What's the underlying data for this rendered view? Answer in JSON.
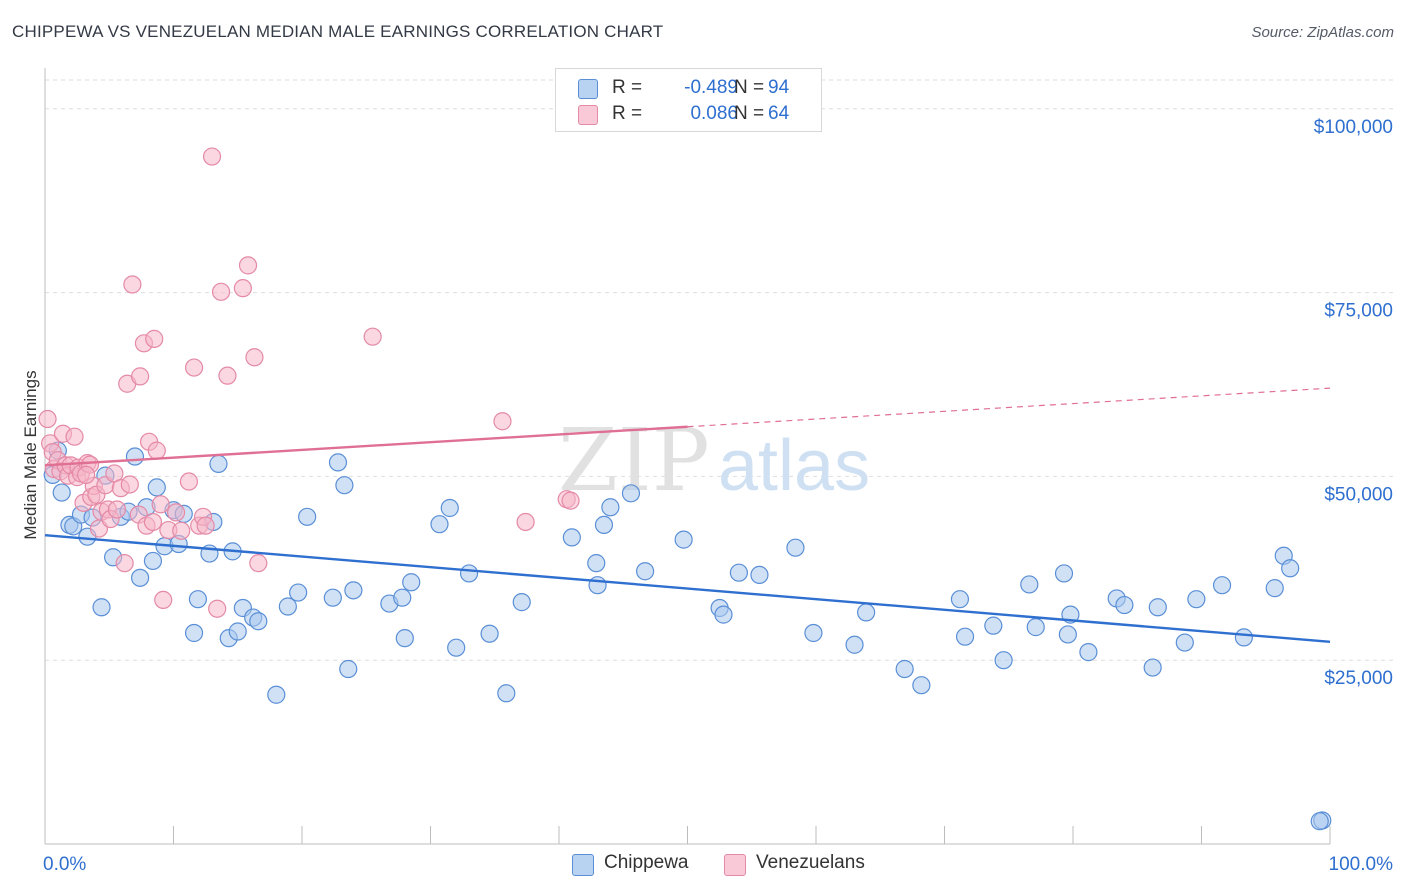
{
  "header": {
    "title": "CHIPPEWA VS VENEZUELAN MEDIAN MALE EARNINGS CORRELATION CHART",
    "source": "Source: ZipAtlas.com"
  },
  "watermark": {
    "zip": "ZIP",
    "atlas": "atlas"
  },
  "legend_top": {
    "rows": [
      {
        "r_label": "R =",
        "r_value": "-0.489",
        "n_label": "N =",
        "n_value": "94"
      },
      {
        "r_label": "R =",
        "r_value": "0.086",
        "n_label": "N =",
        "n_value": "64"
      }
    ]
  },
  "legend_bottom": {
    "items": [
      {
        "label": "Chippewa"
      },
      {
        "label": "Venezuelans"
      }
    ]
  },
  "colors": {
    "blue_fill": "#a9c8ef",
    "blue_stroke": "#5a8fd6",
    "blue_line": "#2e6fcf",
    "pink_fill": "#f6b6c8",
    "pink_stroke": "#e48aa6",
    "pink_line": "#e06f94",
    "grid": "#dedede",
    "axis_label": "#2e6fcf"
  },
  "chart_data": {
    "type": "scatter",
    "title": "CHIPPEWA VS VENEZUELAN MEDIAN MALE EARNINGS CORRELATION CHART",
    "xlabel": "",
    "ylabel": "Median Male Earnings",
    "xlim": [
      0,
      100
    ],
    "ylim": [
      0,
      105000
    ],
    "x_tick_labels": [
      "0.0%",
      "100.0%"
    ],
    "y_ticks": [
      {
        "value": 25000,
        "label": "$25,000"
      },
      {
        "value": 50000,
        "label": "$50,000"
      },
      {
        "value": 75000,
        "label": "$75,000"
      },
      {
        "value": 100000,
        "label": "$100,000"
      }
    ],
    "grid": true,
    "legend": "bottom-center",
    "series": [
      {
        "name": "Chippewa",
        "r": -0.489,
        "n": 94,
        "trend": {
          "x0": 0,
          "y0": 42000,
          "x1": 100,
          "y1": 27500,
          "dashed_from": null
        },
        "points": [
          [
            0.6,
            50200
          ],
          [
            1.0,
            53500
          ],
          [
            1.3,
            47800
          ],
          [
            1.9,
            43400
          ],
          [
            2.2,
            43200
          ],
          [
            2.8,
            44800
          ],
          [
            3.3,
            41800
          ],
          [
            3.7,
            44400
          ],
          [
            4.4,
            32200
          ],
          [
            4.7,
            50100
          ],
          [
            5.3,
            39000
          ],
          [
            5.9,
            44500
          ],
          [
            6.5,
            45200
          ],
          [
            7.0,
            52700
          ],
          [
            7.4,
            36200
          ],
          [
            7.9,
            45800
          ],
          [
            8.4,
            38500
          ],
          [
            8.7,
            48500
          ],
          [
            9.3,
            40500
          ],
          [
            10.0,
            45400
          ],
          [
            10.4,
            40800
          ],
          [
            10.8,
            44900
          ],
          [
            11.6,
            28700
          ],
          [
            11.9,
            33300
          ],
          [
            12.8,
            39500
          ],
          [
            13.1,
            43800
          ],
          [
            13.5,
            51700
          ],
          [
            14.3,
            28000
          ],
          [
            14.6,
            39800
          ],
          [
            15.0,
            28900
          ],
          [
            15.4,
            32100
          ],
          [
            16.2,
            30800
          ],
          [
            16.6,
            30300
          ],
          [
            18.0,
            20300
          ],
          [
            18.9,
            32300
          ],
          [
            19.7,
            34200
          ],
          [
            20.4,
            44500
          ],
          [
            22.4,
            33500
          ],
          [
            22.8,
            51900
          ],
          [
            23.3,
            48800
          ],
          [
            23.6,
            23800
          ],
          [
            24.0,
            34500
          ],
          [
            26.8,
            32700
          ],
          [
            27.8,
            33500
          ],
          [
            28.0,
            28000
          ],
          [
            28.5,
            35600
          ],
          [
            30.7,
            43500
          ],
          [
            31.5,
            45700
          ],
          [
            32.0,
            26700
          ],
          [
            33.0,
            36800
          ],
          [
            34.6,
            28600
          ],
          [
            35.9,
            20500
          ],
          [
            37.1,
            32900
          ],
          [
            41.0,
            41700
          ],
          [
            42.9,
            38200
          ],
          [
            43.0,
            35200
          ],
          [
            43.5,
            43400
          ],
          [
            44.0,
            45800
          ],
          [
            45.6,
            47700
          ],
          [
            46.7,
            37100
          ],
          [
            49.7,
            41400
          ],
          [
            52.5,
            32100
          ],
          [
            52.8,
            31200
          ],
          [
            54.0,
            36900
          ],
          [
            55.6,
            36600
          ],
          [
            58.4,
            40300
          ],
          [
            59.8,
            28700
          ],
          [
            63.0,
            27100
          ],
          [
            63.9,
            31500
          ],
          [
            66.9,
            23800
          ],
          [
            68.2,
            21600
          ],
          [
            71.2,
            33300
          ],
          [
            71.6,
            28200
          ],
          [
            73.8,
            29700
          ],
          [
            74.6,
            25000
          ],
          [
            76.6,
            35300
          ],
          [
            77.1,
            29500
          ],
          [
            79.3,
            36800
          ],
          [
            79.6,
            28500
          ],
          [
            79.8,
            31200
          ],
          [
            81.2,
            26100
          ],
          [
            83.4,
            33400
          ],
          [
            84.0,
            32500
          ],
          [
            86.2,
            24000
          ],
          [
            86.6,
            32200
          ],
          [
            88.7,
            27400
          ],
          [
            89.6,
            33300
          ],
          [
            91.6,
            35200
          ],
          [
            93.3,
            28100
          ],
          [
            95.7,
            34800
          ],
          [
            96.4,
            39200
          ],
          [
            96.9,
            37500
          ],
          [
            99.4,
            3200
          ],
          [
            99.2,
            3100
          ]
        ]
      },
      {
        "name": "Venezuelans",
        "r": 0.086,
        "n": 64,
        "trend": {
          "x0": 0,
          "y0": 51500,
          "x1": 100,
          "y1": 62000,
          "dashed_from": 50
        },
        "points": [
          [
            0.2,
            57800
          ],
          [
            0.4,
            54500
          ],
          [
            0.6,
            53300
          ],
          [
            0.7,
            51000
          ],
          [
            1.0,
            52200
          ],
          [
            1.2,
            50700
          ],
          [
            1.4,
            55800
          ],
          [
            1.6,
            51500
          ],
          [
            1.8,
            50100
          ],
          [
            2.0,
            51500
          ],
          [
            2.3,
            55400
          ],
          [
            2.5,
            49900
          ],
          [
            2.6,
            51200
          ],
          [
            2.8,
            50400
          ],
          [
            3.0,
            46400
          ],
          [
            3.3,
            51800
          ],
          [
            3.5,
            51600
          ],
          [
            3.6,
            47200
          ],
          [
            3.8,
            48700
          ],
          [
            4.0,
            47500
          ],
          [
            4.2,
            42900
          ],
          [
            4.4,
            45200
          ],
          [
            4.7,
            48800
          ],
          [
            4.9,
            45500
          ],
          [
            5.1,
            44200
          ],
          [
            5.4,
            50400
          ],
          [
            5.6,
            45500
          ],
          [
            5.9,
            48400
          ],
          [
            6.2,
            38200
          ],
          [
            6.4,
            62600
          ],
          [
            6.6,
            48900
          ],
          [
            6.8,
            76100
          ],
          [
            7.3,
            44800
          ],
          [
            7.4,
            63600
          ],
          [
            7.7,
            68100
          ],
          [
            7.9,
            43300
          ],
          [
            8.1,
            54700
          ],
          [
            8.4,
            43800
          ],
          [
            8.5,
            68700
          ],
          [
            8.7,
            53500
          ],
          [
            9.0,
            46200
          ],
          [
            9.2,
            33200
          ],
          [
            9.6,
            42700
          ],
          [
            10.2,
            45100
          ],
          [
            10.6,
            42600
          ],
          [
            11.2,
            49300
          ],
          [
            11.6,
            64800
          ],
          [
            12.0,
            43300
          ],
          [
            12.3,
            44500
          ],
          [
            12.5,
            43300
          ],
          [
            13.0,
            93500
          ],
          [
            13.4,
            32000
          ],
          [
            13.7,
            75100
          ],
          [
            14.2,
            63700
          ],
          [
            15.4,
            75600
          ],
          [
            15.8,
            78700
          ],
          [
            16.3,
            66200
          ],
          [
            16.6,
            38200
          ],
          [
            25.5,
            69000
          ],
          [
            35.6,
            57500
          ],
          [
            37.4,
            43800
          ],
          [
            40.6,
            46900
          ],
          [
            40.9,
            46700
          ],
          [
            3.2,
            50200
          ]
        ]
      }
    ]
  }
}
